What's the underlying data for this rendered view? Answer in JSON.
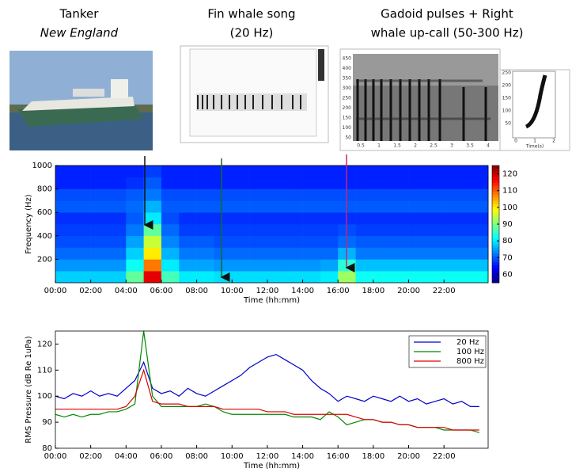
{
  "panels": {
    "tanker": {
      "line1": "Tanker",
      "line2": "New England"
    },
    "fin": {
      "line1": "Fin whale song",
      "line2": "(20 Hz)"
    },
    "gadoid": {
      "line1": "Gadoid pulses + Right",
      "line2": "whale up-call (50-300 Hz)",
      "yticks": [
        "450",
        "400",
        "350",
        "300",
        "250",
        "200",
        "150",
        "100",
        "50"
      ],
      "xticks": [
        "0.5",
        "1",
        "1.5",
        "2",
        "2.5",
        "3",
        "3.5",
        "4"
      ]
    },
    "upcall": {
      "yticks": [
        "250",
        "200",
        "150",
        "100",
        "50"
      ],
      "xticks": [
        "0",
        "1",
        "2"
      ],
      "xlabel": "Time(s)"
    }
  },
  "chart_data": [
    {
      "type": "heatmap",
      "xlabel": "Time (hh:mm)",
      "ylabel": "Frequency (Hz)",
      "xlim": [
        0,
        24.5
      ],
      "ylim": [
        0,
        1000
      ],
      "xticks": [
        {
          "value": 0,
          "label": "00:00"
        },
        {
          "value": 2,
          "label": "02:00"
        },
        {
          "value": 4,
          "label": "04:00"
        },
        {
          "value": 6,
          "label": "06:00"
        },
        {
          "value": 8,
          "label": "08:00"
        },
        {
          "value": 10,
          "label": "10:00"
        },
        {
          "value": 12,
          "label": "12:00"
        },
        {
          "value": 14,
          "label": "14:00"
        },
        {
          "value": 16,
          "label": "16:00"
        },
        {
          "value": 18,
          "label": "18:00"
        },
        {
          "value": 20,
          "label": "20:00"
        },
        {
          "value": 22,
          "label": "22:00"
        }
      ],
      "yticks": [
        200,
        400,
        600,
        800,
        1000
      ],
      "xbins": [
        0,
        1,
        2,
        3,
        4,
        5,
        6,
        7,
        8,
        9,
        10,
        11,
        12,
        13,
        14,
        15,
        16,
        17,
        18,
        19,
        20,
        21,
        22,
        23,
        24.5
      ],
      "ybins": [
        0,
        100,
        200,
        300,
        400,
        500,
        600,
        700,
        800,
        900,
        1000
      ],
      "zlim": [
        55,
        125
      ],
      "zticks": [
        60,
        70,
        80,
        90,
        100,
        110,
        120
      ],
      "colormap": "jet",
      "z": [
        [
          78,
          78,
          78,
          78,
          88,
          118,
          86,
          80,
          80,
          79,
          79,
          79,
          79,
          79,
          79,
          80,
          92,
          82,
          82,
          82,
          82,
          82,
          82,
          82
        ],
        [
          74,
          74,
          74,
          74,
          82,
          108,
          80,
          75,
          75,
          74,
          74,
          74,
          74,
          74,
          74,
          75,
          84,
          77,
          77,
          77,
          77,
          77,
          77,
          77
        ],
        [
          71,
          71,
          71,
          71,
          78,
          100,
          76,
          72,
          72,
          71,
          71,
          71,
          71,
          71,
          71,
          71,
          76,
          72,
          72,
          72,
          72,
          72,
          72,
          72
        ],
        [
          69,
          69,
          69,
          69,
          75,
          95,
          73,
          70,
          70,
          69,
          69,
          69,
          69,
          69,
          69,
          69,
          71,
          70,
          70,
          70,
          70,
          70,
          70,
          70
        ],
        [
          68,
          68,
          68,
          68,
          72,
          88,
          71,
          68,
          68,
          68,
          68,
          68,
          68,
          68,
          68,
          68,
          69,
          68,
          68,
          68,
          68,
          68,
          68,
          68
        ],
        [
          67,
          67,
          67,
          67,
          70,
          80,
          69,
          67,
          67,
          67,
          67,
          67,
          67,
          67,
          67,
          67,
          67,
          67,
          67,
          67,
          67,
          67,
          67,
          67
        ],
        [
          70,
          70,
          70,
          70,
          71,
          76,
          70,
          70,
          70,
          70,
          70,
          70,
          70,
          70,
          70,
          70,
          70,
          70,
          70,
          70,
          70,
          70,
          70,
          70
        ],
        [
          69,
          69,
          69,
          69,
          70,
          72,
          69,
          69,
          69,
          69,
          69,
          69,
          69,
          69,
          69,
          69,
          69,
          69,
          69,
          69,
          69,
          69,
          69,
          69
        ],
        [
          66,
          66,
          66,
          66,
          67,
          70,
          66,
          66,
          66,
          66,
          66,
          66,
          66,
          66,
          66,
          66,
          66,
          66,
          66,
          66,
          66,
          66,
          66,
          66
        ],
        [
          66,
          66,
          66,
          66,
          66,
          68,
          66,
          66,
          66,
          66,
          66,
          66,
          66,
          66,
          66,
          66,
          66,
          66,
          66,
          66,
          66,
          66,
          66,
          66
        ]
      ]
    },
    {
      "type": "line",
      "xlabel": "Time (hh:mm)",
      "ylabel": "RMS Pressure (dB Re 1uPa)",
      "xlim": [
        0,
        24.5
      ],
      "ylim": [
        80,
        125
      ],
      "xticks": [
        {
          "value": 0,
          "label": "00:00"
        },
        {
          "value": 2,
          "label": "02:00"
        },
        {
          "value": 4,
          "label": "04:00"
        },
        {
          "value": 6,
          "label": "06:00"
        },
        {
          "value": 8,
          "label": "08:00"
        },
        {
          "value": 10,
          "label": "10:00"
        },
        {
          "value": 12,
          "label": "12:00"
        },
        {
          "value": 14,
          "label": "14:00"
        },
        {
          "value": 16,
          "label": "16:00"
        },
        {
          "value": 18,
          "label": "18:00"
        },
        {
          "value": 20,
          "label": "20:00"
        },
        {
          "value": 22,
          "label": "22:00"
        }
      ],
      "yticks": [
        80,
        90,
        100,
        110,
        120
      ],
      "legend": "upper right",
      "x": [
        0,
        0.5,
        1,
        1.5,
        2,
        2.5,
        3,
        3.5,
        4,
        4.5,
        5,
        5.5,
        6,
        6.5,
        7,
        7.5,
        8,
        8.5,
        9,
        9.5,
        10,
        10.5,
        11,
        11.5,
        12,
        12.5,
        13,
        13.5,
        14,
        14.5,
        15,
        15.5,
        16,
        16.5,
        17,
        17.5,
        18,
        18.5,
        19,
        19.5,
        20,
        20.5,
        21,
        21.5,
        22,
        22.5,
        23,
        23.5,
        24
      ],
      "series": [
        {
          "name": "20 Hz",
          "color": "#0000cc",
          "values": [
            100,
            99,
            101,
            100,
            102,
            100,
            101,
            100,
            103,
            106,
            113,
            103,
            101,
            102,
            100,
            103,
            101,
            100,
            102,
            104,
            106,
            108,
            111,
            113,
            115,
            116,
            114,
            112,
            110,
            106,
            103,
            101,
            98,
            100,
            99,
            98,
            100,
            99,
            98,
            100,
            98,
            99,
            97,
            98,
            99,
            97,
            98,
            96,
            96
          ]
        },
        {
          "name": "100 Hz",
          "color": "#008800",
          "values": [
            93,
            92,
            93,
            92,
            93,
            93,
            94,
            94,
            95,
            97,
            125,
            100,
            96,
            96,
            96,
            96,
            96,
            97,
            96,
            94,
            93,
            93,
            93,
            93,
            93,
            93,
            93,
            92,
            92,
            92,
            91,
            94,
            92,
            89,
            90,
            91,
            91,
            90,
            90,
            89,
            89,
            88,
            88,
            88,
            87,
            87,
            87,
            87,
            86
          ]
        },
        {
          "name": "800 Hz",
          "color": "#dd0000",
          "values": [
            95,
            95,
            95,
            95,
            95,
            95,
            95,
            95,
            96,
            100,
            110,
            98,
            97,
            97,
            97,
            96,
            96,
            96,
            96,
            95,
            95,
            95,
            95,
            95,
            94,
            94,
            94,
            93,
            93,
            93,
            93,
            93,
            93,
            93,
            92,
            91,
            91,
            90,
            90,
            89,
            89,
            88,
            88,
            88,
            88,
            87,
            87,
            87,
            87
          ]
        }
      ]
    }
  ]
}
